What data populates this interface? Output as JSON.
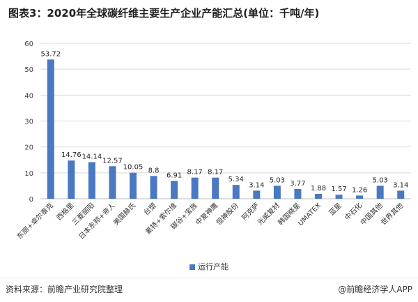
{
  "title": "图表3：2020年全球碳纤维主要生产企业产能汇总(单位：千吨/年)",
  "footer": {
    "source": "资料来源：前瞻产业研究院整理",
    "brand": "@前瞻经济学人APP"
  },
  "colors": {
    "bar": "#4a78c2",
    "grid": "#d9d9d9",
    "axis": "#bfbfbf"
  },
  "chart_data": {
    "type": "bar",
    "categories": [
      "东丽+卓尔泰克",
      "西格里",
      "三菱丽阳",
      "日本东邦+帝人",
      "美国赫氏",
      "台塑",
      "氰特+索尔维",
      "碳谷+宝旌",
      "中复神鹰",
      "恒神股份",
      "阿克萨",
      "光威复材",
      "韩国晓星",
      "UMATEX",
      "蓝星",
      "中石化",
      "中国其他",
      "世界其他"
    ],
    "series": [
      {
        "name": "运行产能",
        "values": [
          53.72,
          14.76,
          14.14,
          12.57,
          10.05,
          8.8,
          6.91,
          8.17,
          8.17,
          5.34,
          3.14,
          5.03,
          3.77,
          1.88,
          1.57,
          1.26,
          5.03,
          3.14
        ]
      }
    ],
    "value_labels": [
      "53.72",
      "14.76",
      "14.14",
      "12.57",
      "10.05",
      "8.8",
      "6.91",
      "8.17",
      "8.17",
      "5.34",
      "3.14",
      "5.03",
      "3.77",
      "1.88",
      "1.57",
      "1.26",
      "5.03",
      "3.14"
    ],
    "ylim": [
      0,
      60
    ],
    "yticks": [
      0,
      10,
      20,
      30,
      40,
      50,
      60
    ],
    "grid": true,
    "legend_position": "bottom"
  }
}
